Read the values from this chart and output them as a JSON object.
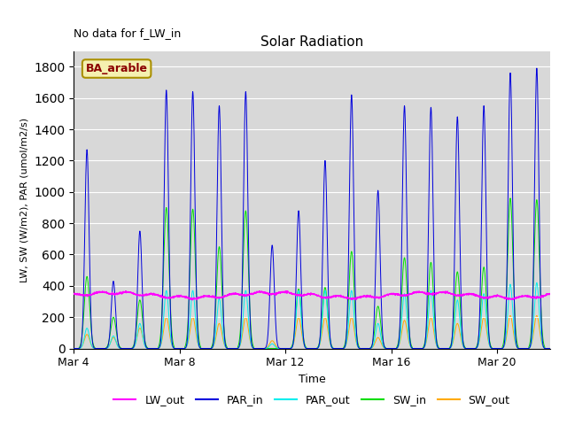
{
  "title": "Solar Radiation",
  "annotation": "No data for f_LW_in",
  "legend_label": "BA_arable",
  "xlabel": "Time",
  "ylabel": "LW, SW (W/m2), PAR (umol/m2/s)",
  "ylim": [
    0,
    1900
  ],
  "yticks": [
    0,
    200,
    400,
    600,
    800,
    1000,
    1200,
    1400,
    1600,
    1800
  ],
  "xstart": 4,
  "xend": 22,
  "xtick_labels": [
    "Mar 4",
    "Mar 8",
    "Mar 12",
    "Mar 16",
    "Mar 20"
  ],
  "xtick_positions": [
    4,
    8,
    12,
    16,
    20
  ],
  "line_colors": {
    "LW_out": "#ff00ff",
    "PAR_in": "#0000dd",
    "PAR_out": "#00eeee",
    "SW_in": "#00dd00",
    "SW_out": "#ffaa00"
  },
  "n_days": 18,
  "day_peaks_PAR_in": [
    1270,
    430,
    750,
    1650,
    1640,
    1550,
    1640,
    660,
    880,
    1200,
    1620,
    1010,
    1550,
    1540,
    1480,
    1550,
    1760,
    1790
  ],
  "day_peaks_SW_in": [
    460,
    200,
    310,
    900,
    890,
    650,
    880,
    0,
    380,
    390,
    620,
    270,
    580,
    550,
    490,
    520,
    960,
    950
  ],
  "day_peaks_SW_out": [
    90,
    70,
    130,
    200,
    200,
    160,
    200,
    50,
    200,
    200,
    200,
    70,
    180,
    200,
    160,
    200,
    210,
    210
  ],
  "day_peaks_PAR_out": [
    130,
    80,
    160,
    370,
    370,
    320,
    370,
    30,
    370,
    370,
    370,
    160,
    350,
    370,
    310,
    350,
    410,
    420
  ],
  "lw_out_base": 340,
  "figsize": [
    6.4,
    4.8
  ],
  "dpi": 100
}
